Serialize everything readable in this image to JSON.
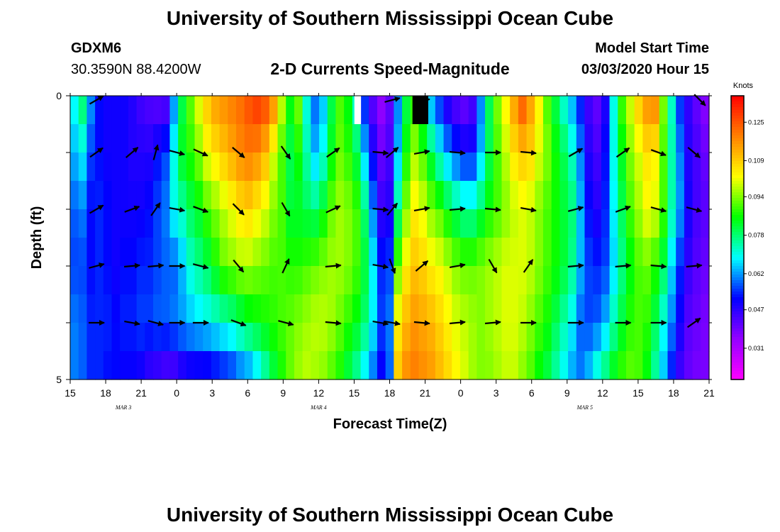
{
  "header": {
    "title_top": "University of Southern Mississippi Ocean Cube",
    "title_bottom": "University of Southern Mississippi Ocean Cube",
    "station_id": "GDXM6",
    "station_coords": "30.3590N 88.4200W",
    "plot_title": "2-D Currents Speed-Magnitude",
    "model_label": "Model Start Time",
    "model_time": "03/03/2020 Hour 15"
  },
  "chart_data": {
    "type": "heatmap",
    "title": "2-D Currents Speed-Magnitude",
    "xlabel": "Forecast Time(Z)",
    "ylabel": "Depth (ft)",
    "ylim": [
      0,
      5
    ],
    "y_ticks": [
      "0",
      "5"
    ],
    "x_ticks": [
      "15",
      "18",
      "21",
      "0",
      "3",
      "6",
      "9",
      "12",
      "15",
      "18",
      "21",
      "0",
      "3",
      "6",
      "9",
      "12",
      "15",
      "18",
      "21"
    ],
    "month_labels": [
      {
        "label": "MAR 3",
        "x_hour": 19.5
      },
      {
        "label": "MAR 4",
        "x_hour": 36
      },
      {
        "label": "MAR 5",
        "x_hour": 58.5
      }
    ],
    "hours_range": [
      0,
      54
    ],
    "colorbar": {
      "unit": "Knots",
      "range": [
        0.018,
        0.136
      ],
      "tick_labels": [
        "0.125",
        "0.109",
        "0.094",
        "0.078",
        "0.062",
        "0.047",
        "0.031"
      ],
      "tick_values": [
        0.125,
        0.109,
        0.094,
        0.078,
        0.062,
        0.047,
        0.031
      ],
      "colors": [
        "#ff00ff",
        "#9400ff",
        "#0000ff",
        "#00ffff",
        "#00ff00",
        "#ffff00",
        "#ff8000",
        "#ff0000"
      ]
    },
    "depth_layers": 5,
    "speed_columns_knots": [
      [
        0.07,
        0.064,
        0.058,
        0.056,
        0.06,
        0.06
      ],
      [
        0.08,
        0.068,
        0.06,
        0.056,
        0.058,
        0.058
      ],
      [
        0.062,
        0.056,
        0.052,
        0.052,
        0.054,
        0.054
      ],
      [
        0.052,
        0.052,
        0.054,
        0.054,
        0.054,
        0.054
      ],
      [
        0.05,
        0.05,
        0.052,
        0.052,
        0.054,
        0.052
      ],
      [
        0.05,
        0.05,
        0.05,
        0.05,
        0.052,
        0.052
      ],
      [
        0.05,
        0.05,
        0.05,
        0.052,
        0.054,
        0.05
      ],
      [
        0.048,
        0.048,
        0.05,
        0.052,
        0.054,
        0.05
      ],
      [
        0.044,
        0.048,
        0.05,
        0.054,
        0.056,
        0.048
      ],
      [
        0.042,
        0.048,
        0.052,
        0.054,
        0.056,
        0.044
      ],
      [
        0.04,
        0.052,
        0.056,
        0.056,
        0.058,
        0.042
      ],
      [
        0.04,
        0.056,
        0.06,
        0.058,
        0.058,
        0.04
      ],
      [
        0.06,
        0.07,
        0.07,
        0.058,
        0.06,
        0.04
      ],
      [
        0.08,
        0.084,
        0.074,
        0.064,
        0.062,
        0.044
      ],
      [
        0.092,
        0.088,
        0.08,
        0.072,
        0.064,
        0.046
      ],
      [
        0.102,
        0.094,
        0.084,
        0.076,
        0.066,
        0.046
      ],
      [
        0.11,
        0.102,
        0.09,
        0.08,
        0.068,
        0.046
      ],
      [
        0.116,
        0.106,
        0.094,
        0.086,
        0.07,
        0.048
      ],
      [
        0.118,
        0.11,
        0.098,
        0.092,
        0.072,
        0.05
      ],
      [
        0.12,
        0.114,
        0.102,
        0.094,
        0.074,
        0.052
      ],
      [
        0.122,
        0.118,
        0.106,
        0.096,
        0.078,
        0.056
      ],
      [
        0.126,
        0.12,
        0.108,
        0.096,
        0.082,
        0.058
      ],
      [
        0.13,
        0.118,
        0.104,
        0.094,
        0.084,
        0.064
      ],
      [
        0.128,
        0.112,
        0.1,
        0.092,
        0.086,
        0.072
      ],
      [
        0.12,
        0.1,
        0.094,
        0.09,
        0.088,
        0.08
      ],
      [
        0.1,
        0.09,
        0.09,
        0.09,
        0.09,
        0.086
      ],
      [
        0.086,
        0.08,
        0.082,
        0.088,
        0.092,
        0.092
      ],
      [
        0.094,
        0.086,
        0.082,
        0.088,
        0.094,
        0.096
      ],
      [
        0.07,
        0.074,
        0.08,
        0.09,
        0.096,
        0.098
      ],
      [
        0.058,
        0.064,
        0.078,
        0.092,
        0.098,
        0.096
      ],
      [
        0.064,
        0.07,
        0.084,
        0.094,
        0.098,
        0.094
      ],
      [
        0.08,
        0.084,
        0.092,
        0.096,
        0.096,
        0.09
      ],
      [
        0.09,
        0.092,
        0.096,
        0.096,
        0.092,
        0.086
      ],
      [
        0.084,
        0.088,
        0.094,
        0.094,
        0.088,
        0.08
      ],
      [
        0.07,
        0.08,
        0.09,
        0.09,
        0.084,
        0.074
      ],
      [
        0.052,
        0.064,
        0.078,
        0.082,
        0.078,
        0.066
      ],
      [
        0.04,
        0.05,
        0.06,
        0.068,
        0.068,
        0.058
      ],
      [
        0.034,
        0.04,
        0.046,
        0.054,
        0.056,
        0.05
      ],
      [
        0.04,
        0.044,
        0.048,
        0.056,
        0.06,
        0.058
      ],
      [
        0.06,
        0.064,
        0.076,
        0.092,
        0.104,
        0.11
      ],
      [
        0.08,
        0.086,
        0.094,
        0.104,
        0.112,
        0.118
      ],
      [
        0.086,
        0.096,
        0.104,
        0.11,
        0.116,
        0.12
      ],
      [
        0.07,
        0.09,
        0.1,
        0.108,
        0.114,
        0.118
      ],
      [
        0.06,
        0.08,
        0.094,
        0.104,
        0.112,
        0.116
      ],
      [
        0.052,
        0.07,
        0.09,
        0.102,
        0.108,
        0.112
      ],
      [
        0.044,
        0.062,
        0.084,
        0.098,
        0.104,
        0.108
      ],
      [
        0.04,
        0.056,
        0.078,
        0.094,
        0.1,
        0.104
      ],
      [
        0.038,
        0.052,
        0.074,
        0.092,
        0.098,
        0.1
      ],
      [
        0.042,
        0.052,
        0.074,
        0.092,
        0.096,
        0.096
      ],
      [
        0.06,
        0.064,
        0.08,
        0.094,
        0.094,
        0.094
      ],
      [
        0.08,
        0.08,
        0.086,
        0.096,
        0.096,
        0.094
      ],
      [
        0.094,
        0.09,
        0.09,
        0.098,
        0.098,
        0.096
      ],
      [
        0.104,
        0.098,
        0.094,
        0.1,
        0.1,
        0.098
      ],
      [
        0.116,
        0.106,
        0.098,
        0.1,
        0.1,
        0.098
      ],
      [
        0.126,
        0.11,
        0.1,
        0.1,
        0.098,
        0.094
      ],
      [
        0.116,
        0.108,
        0.098,
        0.098,
        0.094,
        0.09
      ],
      [
        0.104,
        0.1,
        0.094,
        0.094,
        0.09,
        0.084
      ],
      [
        0.09,
        0.094,
        0.09,
        0.09,
        0.086,
        0.08
      ],
      [
        0.08,
        0.086,
        0.086,
        0.086,
        0.08,
        0.074
      ],
      [
        0.07,
        0.08,
        0.082,
        0.082,
        0.074,
        0.068
      ],
      [
        0.062,
        0.072,
        0.078,
        0.076,
        0.068,
        0.062
      ],
      [
        0.052,
        0.06,
        0.064,
        0.064,
        0.058,
        0.06
      ],
      [
        0.044,
        0.048,
        0.052,
        0.056,
        0.056,
        0.066
      ],
      [
        0.04,
        0.044,
        0.048,
        0.054,
        0.058,
        0.074
      ],
      [
        0.048,
        0.052,
        0.054,
        0.056,
        0.064,
        0.08
      ],
      [
        0.07,
        0.07,
        0.068,
        0.066,
        0.074,
        0.086
      ],
      [
        0.09,
        0.084,
        0.08,
        0.076,
        0.082,
        0.09
      ],
      [
        0.1,
        0.094,
        0.09,
        0.084,
        0.088,
        0.092
      ],
      [
        0.11,
        0.1,
        0.096,
        0.09,
        0.09,
        0.09
      ],
      [
        0.118,
        0.106,
        0.102,
        0.092,
        0.088,
        0.084
      ],
      [
        0.12,
        0.104,
        0.1,
        0.088,
        0.08,
        0.074
      ],
      [
        0.094,
        0.09,
        0.09,
        0.08,
        0.07,
        0.064
      ],
      [
        0.072,
        0.074,
        0.074,
        0.066,
        0.06,
        0.052
      ],
      [
        0.054,
        0.06,
        0.062,
        0.054,
        0.05,
        0.044
      ],
      [
        0.046,
        0.048,
        0.05,
        0.046,
        0.042,
        0.04
      ],
      [
        0.04,
        0.044,
        0.044,
        0.042,
        0.04,
        0.038
      ],
      [
        0.036,
        0.04,
        0.042,
        0.04,
        0.038,
        0.038
      ]
    ],
    "missing_cells": [
      {
        "col": 34,
        "layer": 0,
        "color": "#ffffff"
      },
      {
        "col": 41,
        "layer": 0,
        "color": "#000000"
      }
    ],
    "vectors": [
      [
        [
          1.5,
          0,
          30
        ],
        [
          1.5,
          1,
          35
        ],
        [
          1.5,
          2,
          30
        ],
        [
          1.5,
          3,
          15
        ],
        [
          1.5,
          4,
          0
        ]
      ],
      [
        [
          4.5,
          1,
          40
        ],
        [
          4.5,
          2,
          20
        ],
        [
          4.5,
          3,
          5
        ],
        [
          4.5,
          4,
          -10
        ]
      ],
      [
        [
          6.5,
          1,
          75
        ],
        [
          6.5,
          2,
          55
        ],
        [
          6.5,
          3,
          5
        ],
        [
          6.5,
          4,
          -15
        ]
      ],
      [
        [
          8.3,
          1,
          -15
        ],
        [
          8.3,
          2,
          -10
        ],
        [
          8.3,
          3,
          0
        ],
        [
          8.3,
          4,
          0
        ]
      ],
      [
        [
          10.3,
          1,
          -25
        ],
        [
          10.3,
          2,
          -20
        ],
        [
          10.3,
          3,
          -15
        ],
        [
          10.3,
          4,
          0
        ]
      ],
      [
        [
          13.5,
          1,
          -40
        ],
        [
          13.5,
          2,
          -45
        ],
        [
          13.5,
          3,
          -50
        ],
        [
          13.5,
          4,
          -20
        ]
      ],
      [
        [
          17.5,
          1,
          -55
        ],
        [
          17.5,
          2,
          -60
        ],
        [
          17.5,
          3,
          65
        ],
        [
          17.5,
          4,
          -15
        ]
      ],
      [
        [
          21.5,
          1,
          35
        ],
        [
          21.5,
          2,
          25
        ],
        [
          21.5,
          3,
          5
        ],
        [
          21.5,
          4,
          -5
        ]
      ],
      [
        [
          25.5,
          1,
          -5
        ],
        [
          25.5,
          2,
          -5
        ],
        [
          25.5,
          3,
          -10
        ],
        [
          25.5,
          4,
          -10
        ]
      ],
      [
        [
          26.5,
          0,
          15
        ],
        [
          26.5,
          1,
          40
        ],
        [
          26.5,
          2,
          50
        ],
        [
          26.5,
          3,
          -70
        ],
        [
          26.5,
          4,
          -10
        ]
      ],
      [
        [
          29.0,
          0,
          5
        ],
        [
          29.0,
          1,
          10
        ],
        [
          29.0,
          2,
          10
        ],
        [
          29.0,
          3,
          40
        ],
        [
          29.0,
          4,
          -5
        ]
      ],
      [
        [
          32.0,
          1,
          -5
        ],
        [
          32.0,
          2,
          5
        ],
        [
          32.0,
          3,
          10
        ],
        [
          32.0,
          4,
          5
        ]
      ],
      [
        [
          35.0,
          1,
          0
        ],
        [
          35.0,
          2,
          -5
        ],
        [
          35.0,
          3,
          -60
        ],
        [
          35.0,
          4,
          5
        ]
      ],
      [
        [
          38.0,
          1,
          -5
        ],
        [
          38.0,
          2,
          -10
        ],
        [
          38.0,
          3,
          55
        ],
        [
          38.0,
          4,
          0
        ]
      ],
      [
        [
          42.0,
          1,
          30
        ],
        [
          42.0,
          2,
          15
        ],
        [
          42.0,
          3,
          5
        ],
        [
          42.0,
          4,
          0
        ]
      ],
      [
        [
          46.0,
          1,
          35
        ],
        [
          46.0,
          2,
          20
        ],
        [
          46.0,
          3,
          5
        ],
        [
          46.0,
          4,
          0
        ]
      ],
      [
        [
          49.0,
          1,
          -20
        ],
        [
          49.0,
          2,
          -15
        ],
        [
          49.0,
          3,
          -5
        ],
        [
          49.0,
          4,
          0
        ]
      ],
      [
        [
          52.0,
          1,
          -40
        ],
        [
          52.0,
          2,
          -15
        ],
        [
          52.0,
          3,
          5
        ],
        [
          52.0,
          4,
          35
        ]
      ],
      [
        [
          52.5,
          0,
          -45
        ]
      ]
    ]
  }
}
